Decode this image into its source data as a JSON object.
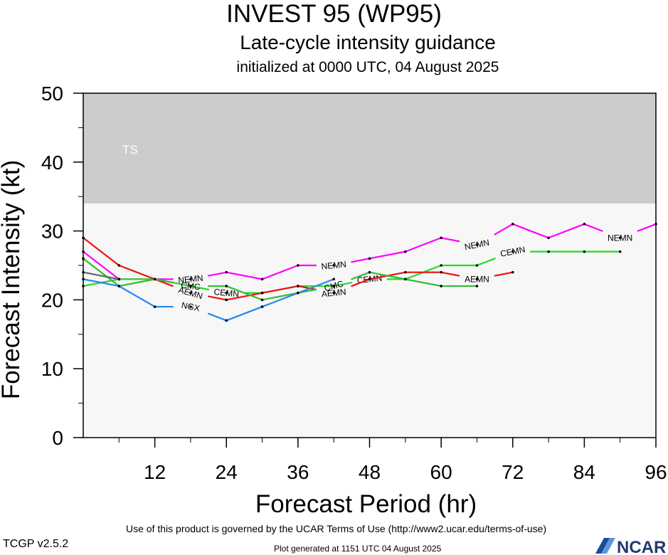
{
  "title": "INVEST 95 (WP95)",
  "subtitle": "Late-cycle intensity guidance",
  "initialized": "initialized at 0000 UTC, 04 August 2025",
  "footer": {
    "terms": "Use of this product is governed by the UCAR Terms of Use (http://www2.ucar.edu/terms-of-use)",
    "version": "TCGP v2.5.2",
    "generated": "Plot generated at 1151 UTC   04 August 2025",
    "logo": "NCAR"
  },
  "chart_data": {
    "type": "line",
    "xlabel": "Forecast Period (hr)",
    "ylabel": "Forecast Intensity (kt)",
    "xlim": [
      0,
      96
    ],
    "ylim": [
      0,
      50
    ],
    "xticks": [
      12,
      24,
      36,
      48,
      60,
      72,
      84,
      96
    ],
    "yticks": [
      0,
      10,
      20,
      30,
      40,
      50
    ],
    "band": {
      "label": "TS",
      "from": 34,
      "to": 50,
      "color": "#cccccc"
    },
    "background": "#f7f7f7",
    "series": [
      {
        "name": "NEMN",
        "color": "#ff00ff",
        "x": [
          0,
          6,
          12,
          18,
          24,
          30,
          36,
          42,
          48,
          54,
          60,
          66,
          72,
          78,
          84,
          90,
          96
        ],
        "y": [
          27,
          23,
          23,
          23,
          24,
          23,
          25,
          25,
          26,
          27,
          29,
          28,
          31,
          29,
          31,
          29,
          31
        ],
        "labels": [
          [
            18,
            "NEMN"
          ],
          [
            42,
            "NEMN"
          ],
          [
            66,
            "NEMN"
          ],
          [
            90,
            "NEMN"
          ]
        ]
      },
      {
        "name": "CEMN",
        "color": "#22dd22",
        "x": [
          0,
          6,
          12,
          18,
          24,
          30,
          36,
          42,
          48,
          54,
          60,
          66,
          72,
          78,
          84,
          90
        ],
        "y": [
          22,
          23,
          23,
          22,
          21,
          21,
          22,
          22,
          23,
          23,
          25,
          25,
          27,
          27,
          27,
          27
        ],
        "labels": [
          [
            24,
            "CEMN"
          ],
          [
            48,
            "CEMN"
          ],
          [
            72,
            "CEMN"
          ]
        ]
      },
      {
        "name": "AEMN",
        "color": "#ee1111",
        "x": [
          0,
          6,
          12,
          18,
          24,
          30,
          36,
          42,
          48,
          54,
          60,
          66,
          72
        ],
        "y": [
          29,
          25,
          23,
          21,
          20,
          21,
          22,
          21,
          23,
          24,
          24,
          23,
          24
        ],
        "labels": [
          [
            18,
            "AEMN"
          ],
          [
            42,
            "AEMN"
          ],
          [
            66,
            "AEMN"
          ]
        ]
      },
      {
        "name": "CMC",
        "color": "#33bb33",
        "x": [
          0,
          6,
          12,
          18,
          24,
          30,
          36,
          42,
          48,
          54,
          60,
          66
        ],
        "y": [
          26,
          22,
          23,
          22,
          22,
          20,
          21,
          22,
          24,
          23,
          22,
          22
        ],
        "labels": [
          [
            18,
            "CMC"
          ],
          [
            42,
            "CMC"
          ]
        ]
      },
      {
        "name": "NGX",
        "color": "#2288ee",
        "x": [
          0,
          6,
          12,
          18,
          24,
          30,
          36,
          42
        ],
        "y": [
          23,
          22,
          19,
          19,
          17,
          19,
          21,
          23
        ],
        "labels": [
          [
            18,
            "NGX"
          ]
        ]
      },
      {
        "name": "",
        "color": "#666666",
        "x": [
          0,
          6
        ],
        "y": [
          24,
          23
        ],
        "labels": []
      }
    ]
  }
}
